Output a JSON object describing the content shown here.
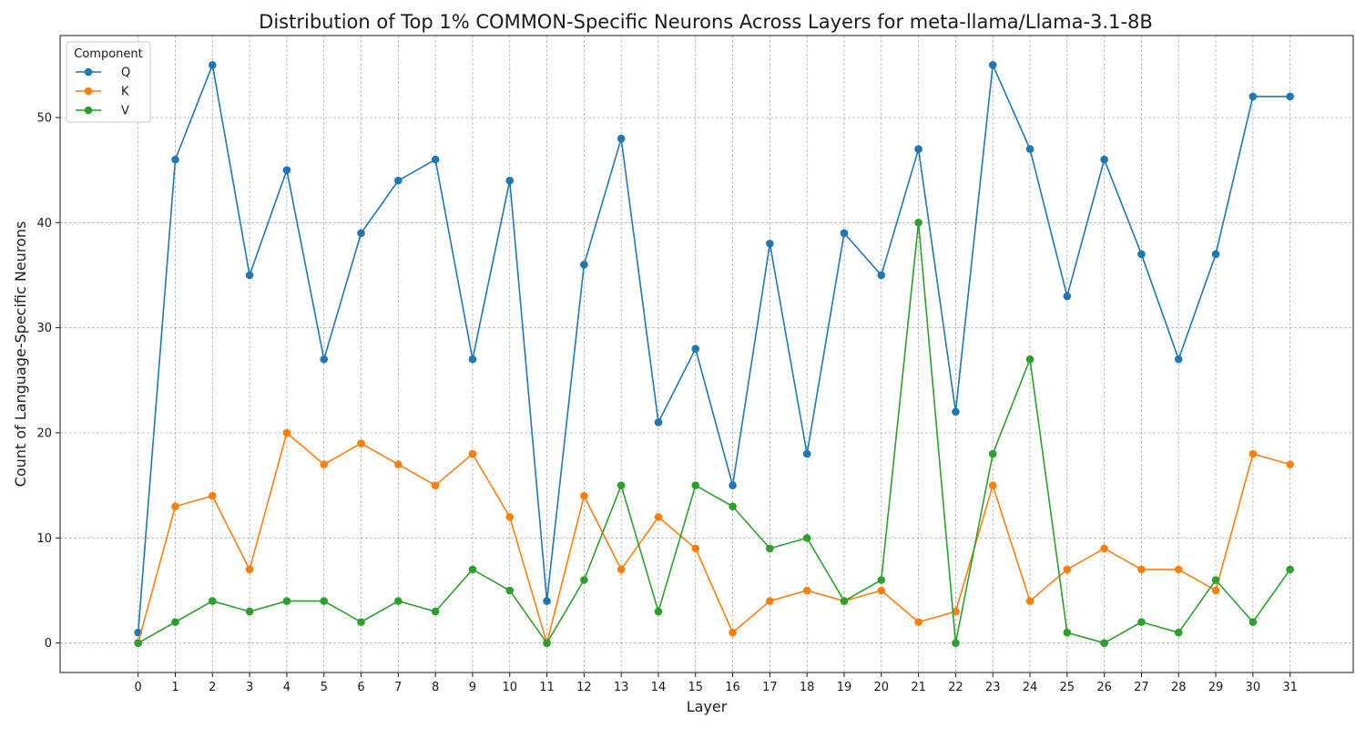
{
  "chart_data": {
    "type": "line",
    "title": "Distribution of Top 1% COMMON-Specific Neurons Across Layers for meta-llama/Llama-3.1-8B",
    "xlabel": "Layer",
    "ylabel": "Count of Language-Specific Neurons",
    "x": [
      0,
      1,
      2,
      3,
      4,
      5,
      6,
      7,
      8,
      9,
      10,
      11,
      12,
      13,
      14,
      15,
      16,
      17,
      18,
      19,
      20,
      21,
      22,
      23,
      24,
      25,
      26,
      27,
      28,
      29,
      30,
      31
    ],
    "xlim": [
      -2.1,
      32.7
    ],
    "ylim": [
      -2.8,
      57.8
    ],
    "yticks": [
      0,
      10,
      20,
      30,
      40,
      50
    ],
    "grid": true,
    "legend": {
      "title": "Component",
      "position": "top-left"
    },
    "series": [
      {
        "name": "Q",
        "color": "#1f77b4",
        "values": [
          1,
          46,
          55,
          35,
          45,
          27,
          39,
          44,
          46,
          27,
          44,
          4,
          36,
          48,
          21,
          28,
          15,
          38,
          18,
          39,
          35,
          47,
          22,
          55,
          47,
          33,
          46,
          37,
          27,
          37,
          52,
          52
        ]
      },
      {
        "name": "K",
        "color": "#ff7f0e",
        "values": [
          0,
          13,
          14,
          7,
          20,
          17,
          19,
          17,
          15,
          18,
          12,
          0,
          14,
          7,
          12,
          9,
          1,
          4,
          5,
          4,
          5,
          2,
          3,
          15,
          4,
          7,
          9,
          7,
          7,
          5,
          18,
          17
        ]
      },
      {
        "name": "V",
        "color": "#2ca02c",
        "values": [
          0,
          2,
          4,
          3,
          4,
          4,
          2,
          4,
          3,
          7,
          5,
          0,
          6,
          15,
          3,
          15,
          13,
          9,
          10,
          4,
          6,
          40,
          0,
          18,
          27,
          1,
          0,
          2,
          1,
          6,
          2,
          7
        ]
      }
    ]
  }
}
